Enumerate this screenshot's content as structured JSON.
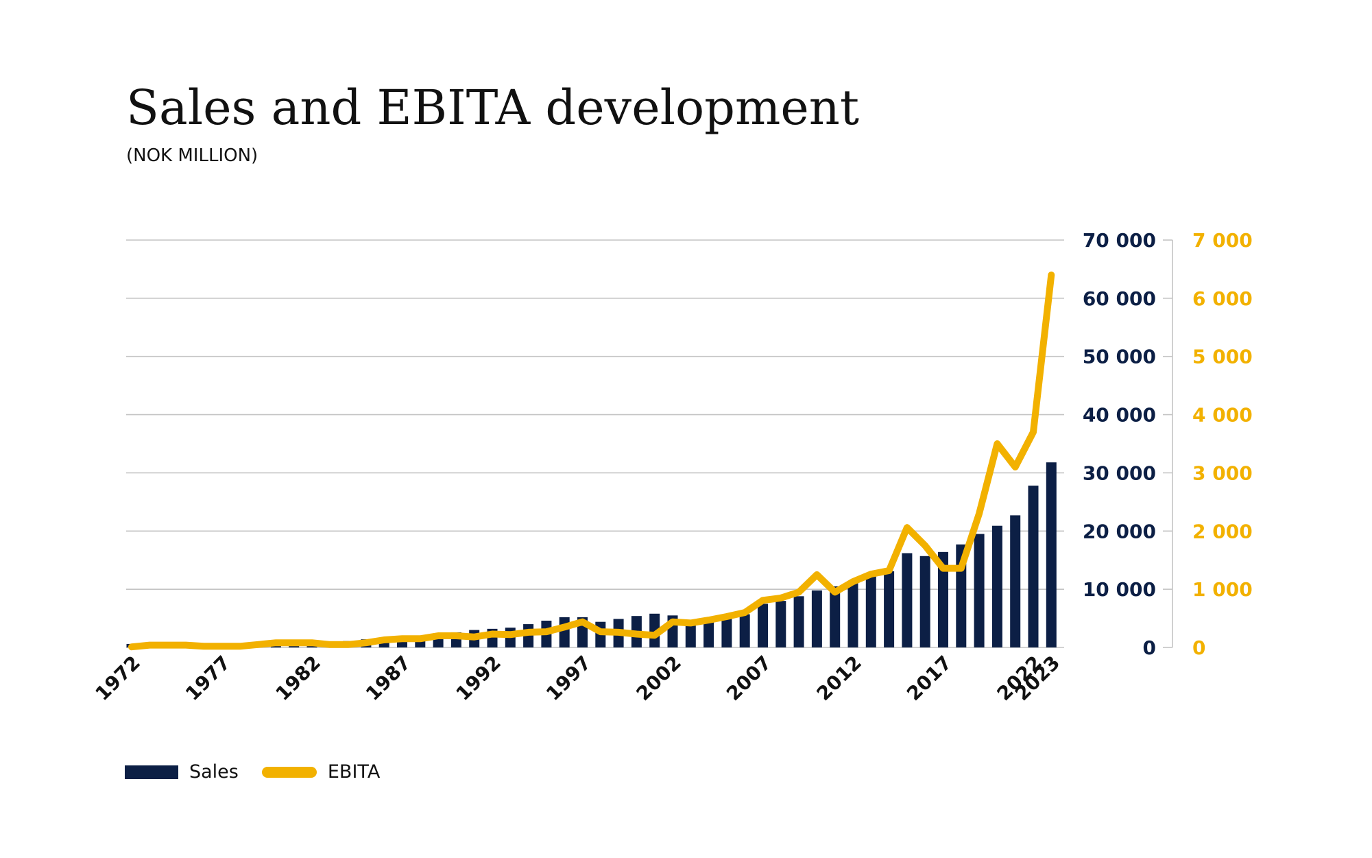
{
  "colors": {
    "sales": "#0c1f45",
    "ebita": "#f2b100",
    "grid": "#c4c4c4",
    "text": "#111111"
  },
  "chart_data": {
    "type": "bar+line",
    "title": "Sales and EBITA development",
    "subtitle": "(NOK MILLION)",
    "x_tick_labels": [
      "1972",
      "1977",
      "1982",
      "1987",
      "1992",
      "1997",
      "2002",
      "2007",
      "2012",
      "2017",
      "2022",
      "2023"
    ],
    "left_axis": {
      "ylim": [
        0,
        70000
      ],
      "ticks": [
        "0",
        "10 000",
        "20 000",
        "30 000",
        "40 000",
        "50 000",
        "60 000",
        "70 000"
      ]
    },
    "right_axis": {
      "ylim": [
        0,
        7000
      ],
      "ticks": [
        "0",
        "1 000",
        "2 000",
        "3 000",
        "4 000",
        "5 000",
        "6 000",
        "7 000"
      ]
    },
    "grid": true,
    "legend_position": "bottom-left",
    "x": [
      1972,
      1973,
      1974,
      1975,
      1976,
      1977,
      1978,
      1979,
      1980,
      1981,
      1982,
      1983,
      1984,
      1985,
      1986,
      1987,
      1988,
      1989,
      1990,
      1991,
      1992,
      1993,
      1994,
      1995,
      1996,
      1997,
      1998,
      1999,
      2000,
      2001,
      2002,
      2003,
      2004,
      2005,
      2006,
      2007,
      2008,
      2009,
      2010,
      2011,
      2012,
      2013,
      2014,
      2015,
      2016,
      2017,
      2018,
      2019,
      2020,
      2021,
      2022,
      2023
    ],
    "series": [
      {
        "name": "Sales",
        "type": "bar",
        "axis": "left",
        "values": [
          600,
          500,
          500,
          500,
          500,
          500,
          500,
          500,
          500,
          500,
          600,
          700,
          1100,
          1400,
          1600,
          1800,
          2000,
          2200,
          2600,
          3000,
          3200,
          3400,
          4000,
          4600,
          5200,
          5200,
          4400,
          4900,
          5400,
          5800,
          5500,
          4700,
          4900,
          5300,
          5700,
          7500,
          8000,
          8800,
          9800,
          10500,
          11400,
          12300,
          13100,
          16200,
          15700,
          16400,
          17700,
          19500,
          20900,
          22700,
          27800,
          31800
        ]
      },
      {
        "name": "EBITA",
        "type": "line",
        "axis": "right",
        "values": [
          10,
          40,
          40,
          40,
          20,
          20,
          20,
          50,
          80,
          80,
          80,
          50,
          50,
          80,
          130,
          150,
          150,
          200,
          200,
          180,
          230,
          220,
          260,
          270,
          350,
          440,
          270,
          260,
          230,
          210,
          440,
          420,
          470,
          530,
          600,
          810,
          850,
          950,
          1250,
          950,
          1130,
          1260,
          1320,
          2060,
          1750,
          1360,
          1360,
          2300,
          3500,
          3100,
          3700,
          6400
        ]
      }
    ]
  }
}
